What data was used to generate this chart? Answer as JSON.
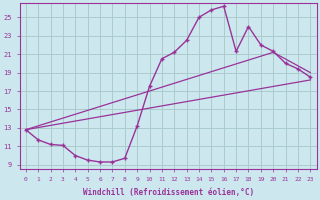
{
  "xlabel": "Windchill (Refroidissement éolien,°C)",
  "bg_color": "#cce8ee",
  "line_color": "#993399",
  "grid_color": "#aacccc",
  "xlim": [
    -0.5,
    23.5
  ],
  "ylim": [
    8.5,
    26.5
  ],
  "yticks": [
    9,
    11,
    13,
    15,
    17,
    19,
    21,
    23,
    25
  ],
  "xticks": [
    0,
    1,
    2,
    3,
    4,
    5,
    6,
    7,
    8,
    9,
    10,
    11,
    12,
    13,
    14,
    15,
    16,
    17,
    18,
    19,
    20,
    21,
    22,
    23
  ],
  "curve1_x": [
    0,
    1,
    2,
    3,
    4,
    5,
    6,
    7,
    8,
    9,
    10,
    11,
    12,
    13,
    14,
    15,
    16,
    17,
    18,
    19,
    20,
    21,
    22,
    23
  ],
  "curve1_y": [
    12.8,
    11.7,
    11.2,
    11.1,
    10.0,
    9.5,
    9.3,
    9.3,
    9.7,
    13.2,
    17.5,
    20.5,
    21.2,
    22.5,
    25.0,
    25.8,
    26.2,
    21.3,
    24.0,
    22.0,
    21.3,
    20.0,
    19.4,
    18.5
  ],
  "curve2_x": [
    0,
    23
  ],
  "curve2_y": [
    12.8,
    18.2
  ],
  "curve3_x": [
    0,
    20,
    23
  ],
  "curve3_y": [
    12.8,
    21.2,
    19.0
  ]
}
